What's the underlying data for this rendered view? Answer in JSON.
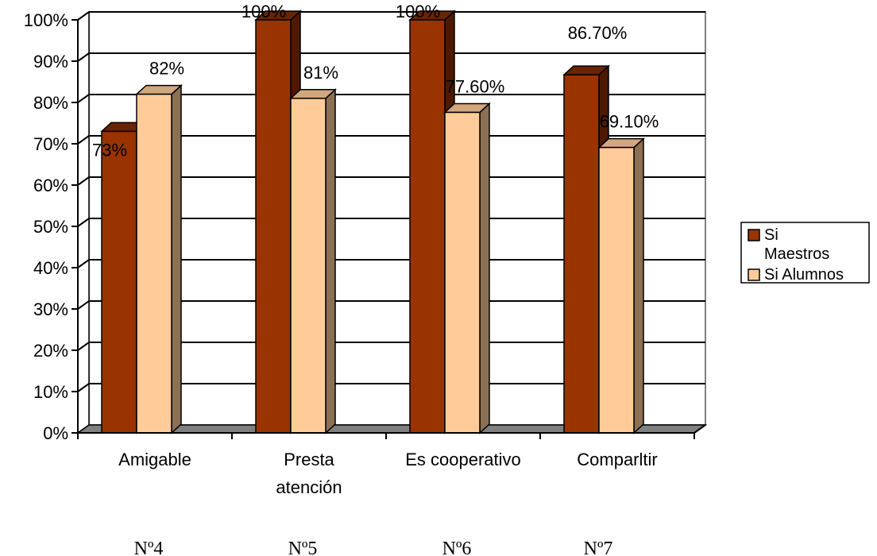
{
  "chart_data": {
    "type": "bar",
    "title": "",
    "xlabel": "",
    "ylabel": "",
    "ylim": [
      0,
      100
    ],
    "y_ticks": [
      "0%",
      "10%",
      "20%",
      "30%",
      "40%",
      "50%",
      "60%",
      "70%",
      "80%",
      "90%",
      "100%"
    ],
    "categories": [
      [
        "Amigable"
      ],
      [
        "Presta",
        "atención"
      ],
      [
        "Es cooperativo"
      ],
      [
        "Comparltir"
      ]
    ],
    "item_numbers": [
      "Nº4",
      "Nº5",
      "Nº6",
      "Nº7"
    ],
    "series": [
      {
        "name": "Si Maestros",
        "legend_lines": [
          "Si",
          "Maestros"
        ],
        "values": [
          73,
          100,
          100,
          86.7
        ],
        "labels": [
          "73%",
          "100%",
          "100%",
          "86.70%"
        ],
        "color": "#993300"
      },
      {
        "name": "Si Alumnos",
        "legend_lines": [
          "Si Alumnos"
        ],
        "values": [
          82,
          81,
          77.6,
          69.1
        ],
        "labels": [
          "82%",
          "81%",
          "77.60%",
          "69.10%"
        ],
        "color": "#FFCC99"
      }
    ],
    "grid": true,
    "legend_position": "right",
    "style": "3d-clustered-column"
  }
}
